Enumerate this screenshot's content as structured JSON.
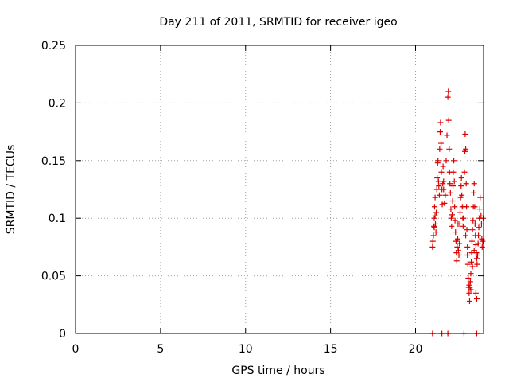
{
  "chart_data": {
    "type": "scatter",
    "title": "Day 211 of 2011, SRMTID for receiver igeo",
    "xlabel": "GPS time / hours",
    "ylabel": "SRMTID / TECUs",
    "xlim": [
      0,
      24
    ],
    "ylim": [
      0,
      0.25
    ],
    "x_ticks": [
      0,
      5,
      10,
      15,
      20
    ],
    "x_tick_labels": [
      "0",
      "5",
      "10",
      "15",
      "20"
    ],
    "y_ticks": [
      0,
      0.05,
      0.1,
      0.15,
      0.2,
      0.25
    ],
    "y_tick_labels": [
      "0",
      "0.05",
      "0.1",
      "0.15",
      "0.2",
      "0.25"
    ],
    "grid": true,
    "series": [
      {
        "name": "SRMTID",
        "marker": "plus",
        "color": "#dd0000",
        "points": [
          [
            21.0,
            0.075
          ],
          [
            21.02,
            0.08
          ],
          [
            21.05,
            0.085
          ],
          [
            21.08,
            0.093
          ],
          [
            21.1,
            0.1
          ],
          [
            21.12,
            0.11
          ],
          [
            21.15,
            0.118
          ],
          [
            21.17,
            0.095
          ],
          [
            21.2,
            0.088
          ],
          [
            21.22,
            0.105
          ],
          [
            21.25,
            0.125
          ],
          [
            21.27,
            0.135
          ],
          [
            21.3,
            0.148
          ],
          [
            21.32,
            0.15
          ],
          [
            21.35,
            0.132
          ],
          [
            21.37,
            0.128
          ],
          [
            21.4,
            0.12
          ],
          [
            21.42,
            0.16
          ],
          [
            21.45,
            0.175
          ],
          [
            21.47,
            0.183
          ],
          [
            21.5,
            0.165
          ],
          [
            21.52,
            0.14
          ],
          [
            21.55,
            0.125
          ],
          [
            21.57,
            0.112
          ],
          [
            21.6,
            0.13
          ],
          [
            21.62,
            0.145
          ],
          [
            21.65,
            0.132
          ],
          [
            21.7,
            0.113
          ],
          [
            21.75,
            0.12
          ],
          [
            21.8,
            0.15
          ],
          [
            21.85,
            0.172
          ],
          [
            21.9,
            0.205
          ],
          [
            21.93,
            0.21
          ],
          [
            21.95,
            0.185
          ],
          [
            21.98,
            0.16
          ],
          [
            22.0,
            0.14
          ],
          [
            22.02,
            0.13
          ],
          [
            22.05,
            0.122
          ],
          [
            22.08,
            0.108
          ],
          [
            22.1,
            0.1
          ],
          [
            22.12,
            0.093
          ],
          [
            22.15,
            0.103
          ],
          [
            22.18,
            0.115
          ],
          [
            22.2,
            0.128
          ],
          [
            22.22,
            0.14
          ],
          [
            22.25,
            0.15
          ],
          [
            22.28,
            0.132
          ],
          [
            22.3,
            0.11
          ],
          [
            22.32,
            0.098
          ],
          [
            22.35,
            0.088
          ],
          [
            22.38,
            0.08
          ],
          [
            22.4,
            0.07
          ],
          [
            22.42,
            0.063
          ],
          [
            22.45,
            0.075
          ],
          [
            22.48,
            0.082
          ],
          [
            22.5,
            0.095
          ],
          [
            22.52,
            0.072
          ],
          [
            22.55,
            0.068
          ],
          [
            22.58,
            0.078
          ],
          [
            22.6,
            0.095
          ],
          [
            22.62,
            0.105
          ],
          [
            22.65,
            0.118
          ],
          [
            22.68,
            0.128
          ],
          [
            22.7,
            0.135
          ],
          [
            22.72,
            0.12
          ],
          [
            22.75,
            0.11
          ],
          [
            22.78,
            0.1
          ],
          [
            22.8,
            0.093
          ],
          [
            22.82,
            0.1
          ],
          [
            22.85,
            0.11
          ],
          [
            22.88,
            0.14
          ],
          [
            22.9,
            0.158
          ],
          [
            22.92,
            0.173
          ],
          [
            22.95,
            0.16
          ],
          [
            22.98,
            0.13
          ],
          [
            23.0,
            0.11
          ],
          [
            23.02,
            0.09
          ],
          [
            23.05,
            0.075
          ],
          [
            23.08,
            0.06
          ],
          [
            23.1,
            0.048
          ],
          [
            23.12,
            0.04
          ],
          [
            23.15,
            0.035
          ],
          [
            23.18,
            0.028
          ],
          [
            23.2,
            0.04
          ],
          [
            23.22,
            0.045
          ],
          [
            23.25,
            0.052
          ],
          [
            23.28,
            0.062
          ],
          [
            23.3,
            0.07
          ],
          [
            23.32,
            0.08
          ],
          [
            23.35,
            0.09
          ],
          [
            23.38,
            0.098
          ],
          [
            23.4,
            0.11
          ],
          [
            23.42,
            0.122
          ],
          [
            23.45,
            0.13
          ],
          [
            23.48,
            0.11
          ],
          [
            23.5,
            0.095
          ],
          [
            23.52,
            0.085
          ],
          [
            23.55,
            0.077
          ],
          [
            23.58,
            0.07
          ],
          [
            23.6,
            0.065
          ],
          [
            23.62,
            0.06
          ],
          [
            23.65,
            0.068
          ],
          [
            23.68,
            0.078
          ],
          [
            23.7,
            0.085
          ],
          [
            23.72,
            0.092
          ],
          [
            23.75,
            0.1
          ],
          [
            23.78,
            0.108
          ],
          [
            23.8,
            0.118
          ],
          [
            23.85,
            0.102
          ],
          [
            23.88,
            0.095
          ],
          [
            23.9,
            0.082
          ],
          [
            23.92,
            0.075
          ],
          [
            23.95,
            0.08
          ],
          [
            23.98,
            0.1
          ],
          [
            23.55,
            0.035
          ],
          [
            23.6,
            0.03
          ],
          [
            23.15,
            0.042
          ],
          [
            23.25,
            0.038
          ],
          [
            21.1,
            0.092
          ],
          [
            21.15,
            0.102
          ],
          [
            21.65,
            0.125
          ],
          [
            22.95,
            0.085
          ],
          [
            23.05,
            0.068
          ],
          [
            23.35,
            0.058
          ],
          [
            23.45,
            0.072
          ],
          [
            21.0,
            0.0
          ],
          [
            21.55,
            0.0
          ],
          [
            21.9,
            0.0
          ],
          [
            22.85,
            0.0
          ],
          [
            23.6,
            0.0
          ]
        ]
      }
    ]
  }
}
